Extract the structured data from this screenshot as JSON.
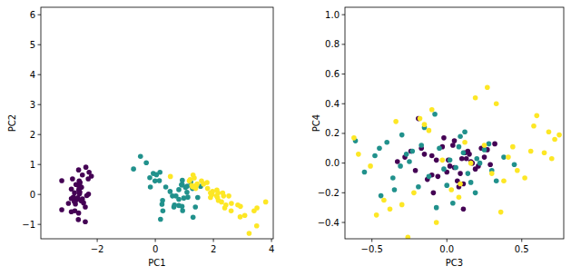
{
  "chart_data": [
    {
      "type": "scatter",
      "x_label": "PC1",
      "y_label": "PC2",
      "marker": "circle",
      "xlim": [
        -3.94,
        4.06
      ],
      "ylim": [
        -1.48,
        6.25
      ],
      "xticks": [
        {
          "value": -2,
          "label": "−2"
        },
        0,
        2,
        4
      ],
      "yticks": [
        {
          "value": -1,
          "label": "−1"
        },
        0,
        1,
        2,
        3,
        4,
        5,
        6
      ],
      "series": [
        {
          "color": "#440154",
          "x": [
            -2.68,
            -2.71,
            -2.89,
            -2.75,
            -2.73,
            -2.28,
            -2.82,
            -2.63,
            -2.89,
            -2.67,
            -2.51,
            -2.61,
            -2.79,
            -3.22,
            -2.64,
            -2.39,
            -2.62,
            -2.65,
            -2.2,
            -2.59,
            -2.31,
            -2.54,
            -3.22,
            -2.3,
            -2.36,
            -2.51,
            -2.47,
            -2.56,
            -2.64,
            -2.63,
            -2.59,
            -2.41,
            -2.65,
            -2.6,
            -2.77,
            -2.85,
            -2.99,
            -2.41,
            -2.89,
            -2.78
          ],
          "values": [
            0.32,
            -0.18,
            -0.14,
            -0.32,
            0.33,
            0.74,
            -0.09,
            0.16,
            -0.58,
            -0.11,
            0.65,
            0.02,
            -0.24,
            -0.51,
            0.82,
            0.91,
            0.45,
            0.31,
            0.61,
            0.27,
            0.52,
            0.24,
            0.46,
            0.01,
            -0.04,
            -0.15,
            -0.28,
            -0.21,
            -0.62,
            0.14,
            0.4,
            -0.42,
            -0.84,
            0.08,
            -0.55,
            0.52,
            -0.3,
            -0.91,
            0.18,
            0.06
          ]
        },
        {
          "color": "#21918c",
          "x": [
            1.28,
            0.93,
            1.46,
            0.18,
            1.09,
            0.64,
            1.1,
            -0.75,
            1.04,
            -0.01,
            -0.51,
            0.51,
            0.26,
            0.98,
            -0.17,
            0.93,
            0.66,
            0.23,
            0.94,
            0.04,
            1.12,
            0.36,
            1.3,
            0.92,
            0.71,
            0.9,
            1.33,
            1.56,
            0.81,
            -0.31,
            -0.07,
            -0.19,
            0.14,
            1.38,
            0.59,
            0.81,
            1.22,
            0.81,
            0.25,
            0.16
          ],
          "values": [
            0.2,
            0.32,
            -0.1,
            -0.83,
            0.07,
            -0.42,
            0.28,
            0.85,
            0.23,
            0.45,
            1.27,
            0.1,
            -0.55,
            -0.12,
            0.25,
            0.47,
            -0.35,
            -0.33,
            -0.54,
            0.66,
            -0.09,
            0.25,
            -0.76,
            -0.4,
            -0.05,
            0.32,
            0.21,
            0.27,
            -0.16,
            1.06,
            0.7,
            0.56,
            0.46,
            -0.42,
            -0.05,
            0.16,
            0.41,
            -0.37,
            -0.2,
            0.74
          ]
        },
        {
          "color": "#fde725",
          "x": [
            2.53,
            1.41,
            2.62,
            1.97,
            2.35,
            3.4,
            0.52,
            2.93,
            2.32,
            2.92,
            1.66,
            1.8,
            2.17,
            1.34,
            1.59,
            1.9,
            1.95,
            3.49,
            3.8,
            1.3,
            2.43,
            1.2,
            3.5,
            1.39,
            2.28,
            2.61,
            1.26,
            1.29,
            2.12,
            2.39,
            2.84,
            3.23,
            2.16,
            1.44,
            1.78,
            3.08,
            2.14,
            1.9,
            1.17,
            2.11
          ],
          "values": [
            -0.05,
            0.3,
            -0.3,
            0.1,
            -0.05,
            -0.55,
            0.6,
            -0.4,
            0.05,
            -0.75,
            0.35,
            0.2,
            -0.2,
            0.55,
            0.45,
            -0.1,
            0.0,
            -1.05,
            -0.25,
            0.65,
            -0.35,
            0.5,
            -0.45,
            0.2,
            -0.25,
            -0.55,
            0.3,
            0.25,
            0.15,
            -0.45,
            -0.35,
            -1.3,
            0.05,
            0.35,
            0.4,
            -0.7,
            -0.1,
            0.05,
            0.45,
            -0.05
          ]
        }
      ]
    },
    {
      "type": "scatter",
      "x_label": "PC3",
      "y_label": "PC4",
      "marker": "circle",
      "xlim": [
        -0.68,
        0.78
      ],
      "ylim": [
        -0.51,
        1.05
      ],
      "xticks": [
        {
          "value": -0.5,
          "label": "−0.5"
        },
        {
          "value": 0,
          "label": "0.0"
        },
        0.5
      ],
      "yticks": [
        {
          "value": -0.4,
          "label": "−0.4"
        },
        {
          "value": -0.2,
          "label": "−0.2"
        },
        {
          "value": 0,
          "label": "0.0"
        },
        0.2,
        0.4,
        0.6,
        0.8,
        {
          "value": 1,
          "label": "1.0"
        }
      ],
      "series": [
        {
          "color": "#440154",
          "x": [
            0.01,
            0.25,
            -0.07,
            -0.1,
            0.02,
            0.15,
            -0.33,
            0.11,
            -0.1,
            0.05,
            0.17,
            -0.17,
            0.09,
            0.04,
            0.29,
            0.12,
            -0.13,
            0.05,
            0.1,
            -0.21,
            0.27,
            0.08,
            -0.24,
            0.19,
            -0.03,
            0.13,
            -0.06,
            0.32,
            0.11,
            -0.15,
            0.21,
            -0.02,
            0.07,
            -0.28,
            0.16,
            0.0,
            0.23,
            -0.09,
            0.14,
            -0.19
          ],
          "values": [
            0.02,
            0.04,
            0.02,
            -0.08,
            -0.02,
            0.06,
            0.01,
            -0.14,
            0.05,
            -0.03,
            0.0,
            0.1,
            -0.07,
            0.12,
            -0.01,
            0.07,
            -0.11,
            0.15,
            0.03,
            -0.05,
            0.09,
            -0.16,
            0.08,
            -0.04,
            0.11,
            0.03,
            -0.09,
            0.13,
            -0.31,
            0.06,
            -0.02,
            0.17,
            -0.12,
            0.04,
            0.01,
            -0.06,
            0.1,
            -0.2,
            0.08,
            0.3
          ]
        },
        {
          "color": "#21918c",
          "x": [
            -0.48,
            -0.36,
            -0.17,
            0.22,
            -0.44,
            0.09,
            0.3,
            -0.23,
            -0.61,
            0.16,
            -0.08,
            -0.31,
            0.04,
            -0.05,
            0.38,
            -0.19,
            0.12,
            -0.55,
            0.25,
            -0.12,
            0.02,
            -0.4,
            0.19,
            0.33,
            -0.27,
            -0.02,
            0.08,
            -0.15,
            0.45,
            -0.35,
            0.11,
            -0.07,
            0.28,
            -0.25,
            0.0,
            0.2,
            -0.45,
            0.14,
            -0.3,
            0.06
          ],
          "values": [
            0.05,
            -0.1,
            0.12,
            0.0,
            -0.22,
            0.18,
            -0.05,
            0.08,
            0.15,
            -0.13,
            0.33,
            -0.02,
            -0.27,
            0.1,
            0.04,
            -0.16,
            0.21,
            -0.06,
            0.09,
            -0.09,
            0.02,
            0.14,
            -0.2,
            -0.12,
            0.06,
            -0.04,
            0.11,
            0.24,
            -0.01,
            -0.18,
            0.07,
            -0.3,
            0.13,
            0.01,
            -0.15,
            0.03,
            0.1,
            -0.07,
            0.19,
            -0.03
          ]
        },
        {
          "color": "#fde725",
          "x": [
            -0.03,
            0.38,
            0.27,
            -0.12,
            0.56,
            0.72,
            -0.42,
            0.6,
            0.19,
            -0.26,
            0.75,
            -0.59,
            0.08,
            0.47,
            -0.15,
            0.33,
            -0.38,
            0.12,
            0.65,
            -0.51,
            0.03,
            0.25,
            -0.18,
            0.52,
            -0.34,
            0.41,
            -0.07,
            0.68,
            -0.47,
            0.16,
            0.58,
            -0.22,
            0.3,
            -0.62,
            0.09,
            0.44,
            -0.3,
            0.7,
            -0.1,
            0.36
          ],
          "values": [
            0.02,
            -0.12,
            0.51,
            0.22,
            0.08,
            0.16,
            -0.25,
            0.32,
            0.44,
            -0.5,
            0.19,
            0.06,
            -0.23,
            -0.05,
            0.26,
            0.4,
            -0.31,
            0.14,
            0.07,
            -0.02,
            -0.18,
            0.12,
            0.3,
            -0.1,
            0.28,
            0.04,
            -0.4,
            0.21,
            -0.35,
            0.0,
            0.25,
            -0.2,
            -0.07,
            0.17,
            -0.14,
            0.11,
            -0.28,
            0.03,
            0.36,
            -0.33
          ]
        }
      ]
    }
  ]
}
